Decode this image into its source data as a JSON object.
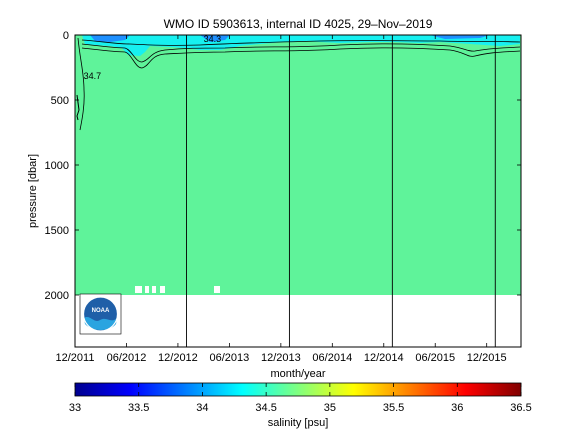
{
  "chart_data": {
    "type": "heatmap",
    "title": "WMO ID 5903613, internal ID 4025, 29–Nov–2019",
    "xlabel": "month/year",
    "ylabel": "pressure [dbar]",
    "x_ticks": [
      "12/2011",
      "06/2012",
      "12/2012",
      "06/2013",
      "12/2013",
      "06/2014",
      "12/2014",
      "06/2015",
      "12/2015"
    ],
    "y_ticks": [
      0,
      500,
      1000,
      1500,
      2000
    ],
    "ylim": [
      2400,
      0
    ],
    "x_range": [
      "2011-12",
      "2016-04"
    ],
    "profile_depth_max": 2000,
    "year_marker_dates": [
      "2013-01",
      "2014-01",
      "2015-01",
      "2016-01"
    ],
    "contour_labels": [
      {
        "text": "34.7",
        "date": "2012-01",
        "pressure": 340
      },
      {
        "text": "34.3",
        "date": "2013-03",
        "pressure": 55
      }
    ],
    "colorbar": {
      "label": "salinity [psu]",
      "ticks": [
        "33",
        "33.5",
        "34",
        "34.5",
        "35",
        "35.5",
        "36",
        "36.5"
      ],
      "range": [
        33,
        36.5
      ],
      "colormap": "jet"
    },
    "dominant_color": "#5ff39a",
    "surface_color": "#17f0f0",
    "logo": "noaa-logo"
  }
}
